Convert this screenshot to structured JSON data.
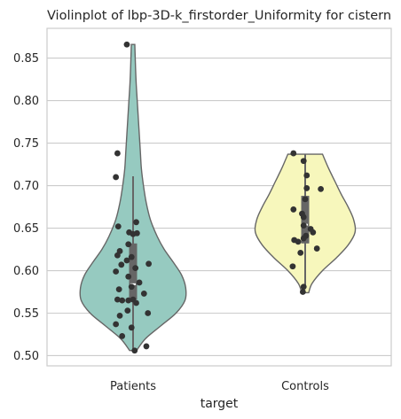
{
  "chart_data": {
    "type": "violin",
    "title": "Violinplot of lbp-3D-k_firstorder_Uniformity for cistern",
    "xlabel": "target",
    "ylabel": "",
    "ylim": [
      0.488,
      0.885
    ],
    "yticks": [
      "0.50",
      "0.55",
      "0.60",
      "0.65",
      "0.70",
      "0.75",
      "0.80",
      "0.85"
    ],
    "grid": "horizontal",
    "categories": [
      "Patients",
      "Controls"
    ],
    "colors": {
      "Patients": "#96cac0",
      "Controls": "#f7f7bc",
      "outline": "#666666",
      "points": "#333333",
      "grid": "#cccccc",
      "box": "#666666"
    },
    "series": [
      {
        "category": "Patients",
        "violin_profile": [
          [
            0.506,
            0.05
          ],
          [
            0.52,
            0.18
          ],
          [
            0.535,
            0.4
          ],
          [
            0.55,
            0.62
          ],
          [
            0.565,
            0.75
          ],
          [
            0.58,
            0.76
          ],
          [
            0.595,
            0.7
          ],
          [
            0.61,
            0.58
          ],
          [
            0.625,
            0.45
          ],
          [
            0.64,
            0.35
          ],
          [
            0.66,
            0.25
          ],
          [
            0.68,
            0.19
          ],
          [
            0.7,
            0.15
          ],
          [
            0.72,
            0.12
          ],
          [
            0.74,
            0.105
          ],
          [
            0.76,
            0.09
          ],
          [
            0.78,
            0.075
          ],
          [
            0.8,
            0.06
          ],
          [
            0.82,
            0.045
          ],
          [
            0.84,
            0.035
          ],
          [
            0.866,
            0.025
          ]
        ],
        "box": {
          "q1": 0.566,
          "median": 0.584,
          "q3": 0.632,
          "whisker_low": 0.506,
          "whisker_high": 0.711
        },
        "points": [
          [
            0.866,
            -0.08
          ],
          [
            0.738,
            -0.2
          ],
          [
            0.71,
            -0.22
          ],
          [
            0.657,
            0.04
          ],
          [
            0.652,
            -0.19
          ],
          [
            0.645,
            -0.05
          ],
          [
            0.644,
            0.05
          ],
          [
            0.643,
            0.0
          ],
          [
            0.631,
            -0.06
          ],
          [
            0.623,
            -0.17
          ],
          [
            0.618,
            -0.2
          ],
          [
            0.616,
            -0.02
          ],
          [
            0.612,
            -0.08
          ],
          [
            0.608,
            0.2
          ],
          [
            0.607,
            -0.15
          ],
          [
            0.603,
            0.03
          ],
          [
            0.599,
            -0.22
          ],
          [
            0.593,
            -0.06
          ],
          [
            0.586,
            0.08
          ],
          [
            0.581,
            -0.02
          ],
          [
            0.578,
            -0.18
          ],
          [
            0.573,
            0.14
          ],
          [
            0.566,
            -0.2
          ],
          [
            0.566,
            0.0
          ],
          [
            0.565,
            -0.14
          ],
          [
            0.565,
            -0.06
          ],
          [
            0.562,
            0.04
          ],
          [
            0.553,
            -0.07
          ],
          [
            0.55,
            0.19
          ],
          [
            0.547,
            -0.17
          ],
          [
            0.537,
            -0.22
          ],
          [
            0.533,
            -0.02
          ],
          [
            0.523,
            -0.14
          ],
          [
            0.511,
            0.17
          ],
          [
            0.506,
            0.02
          ]
        ]
      },
      {
        "category": "Controls",
        "violin_profile": [
          [
            0.574,
            0.05
          ],
          [
            0.585,
            0.1
          ],
          [
            0.6,
            0.25
          ],
          [
            0.615,
            0.45
          ],
          [
            0.63,
            0.62
          ],
          [
            0.645,
            0.72
          ],
          [
            0.66,
            0.7
          ],
          [
            0.675,
            0.62
          ],
          [
            0.69,
            0.52
          ],
          [
            0.705,
            0.43
          ],
          [
            0.72,
            0.34
          ],
          [
            0.737,
            0.25
          ]
        ],
        "box": {
          "q1": 0.632,
          "median": 0.654,
          "q3": 0.688,
          "whisker_low": 0.58,
          "whisker_high": 0.737
        },
        "points": [
          [
            0.738,
            -0.15
          ],
          [
            0.729,
            -0.02
          ],
          [
            0.712,
            0.02
          ],
          [
            0.697,
            0.02
          ],
          [
            0.696,
            0.2
          ],
          [
            0.684,
            0.0
          ],
          [
            0.672,
            -0.15
          ],
          [
            0.667,
            -0.04
          ],
          [
            0.663,
            -0.02
          ],
          [
            0.653,
            -0.02
          ],
          [
            0.649,
            0.07
          ],
          [
            0.645,
            0.1
          ],
          [
            0.641,
            0.01
          ],
          [
            0.638,
            -0.02
          ],
          [
            0.636,
            -0.14
          ],
          [
            0.634,
            -0.09
          ],
          [
            0.626,
            0.15
          ],
          [
            0.621,
            -0.06
          ],
          [
            0.605,
            -0.16
          ],
          [
            0.581,
            -0.02
          ],
          [
            0.575,
            -0.03
          ]
        ]
      }
    ]
  }
}
